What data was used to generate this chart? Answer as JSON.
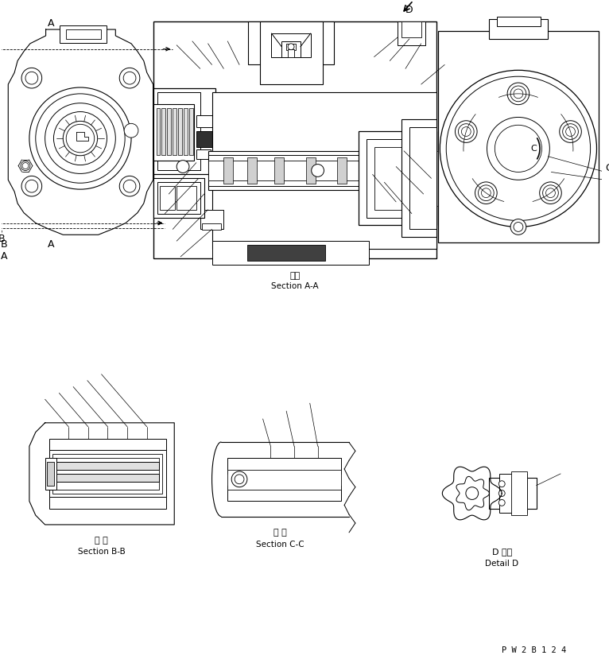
{
  "bg_color": "#ffffff",
  "line_color": "#000000",
  "fig_width": 7.66,
  "fig_height": 8.34,
  "dpi": 100,
  "title_bottom": "P W 2 B 1 2 4",
  "section_aa_label1": "断面",
  "section_aa_label2": "Section A-A",
  "section_bb_label1": "断 面",
  "section_bb_label2": "Section B-B",
  "section_cc_label1": "断 面",
  "section_cc_label2": "Section C-C",
  "section_dd_label1": "D 詳細",
  "section_dd_label2": "Detail D"
}
